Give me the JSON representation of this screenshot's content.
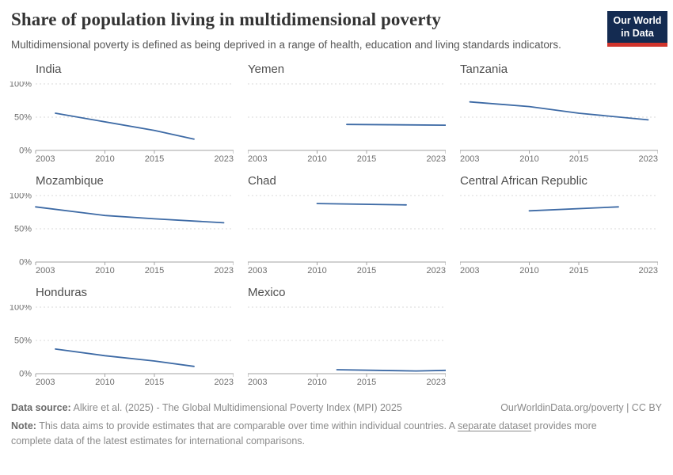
{
  "header": {
    "title": "Share of population living in multidimensional poverty",
    "subtitle": "Multidimensional poverty is defined as being deprived in a range of health, education and living standards indicators.",
    "logo": {
      "line1": "Our World",
      "line2": "in Data"
    }
  },
  "style": {
    "line_color": "#3d6aa5",
    "grid_color": "#d8d8d8",
    "axis_color": "#a3a3a3",
    "tick_label_color": "#6e6e6e",
    "logo_bg": "#142b51",
    "logo_accent": "#d0342c"
  },
  "chart_data": {
    "type": "line",
    "layout": "small-multiples",
    "title": "Share of population living in multidimensional poverty",
    "xlabel": "",
    "ylabel": "",
    "x_range": [
      2003,
      2023
    ],
    "y_range": [
      0,
      100
    ],
    "x_ticks": [
      "2003",
      "2010",
      "2015",
      "2023"
    ],
    "y_ticks": [
      "0%",
      "50%",
      "100%"
    ],
    "grid": true,
    "legend": "none",
    "series": [
      {
        "name": "India",
        "x": [
          2005,
          2015,
          2019
        ],
        "values": [
          56,
          30,
          17
        ]
      },
      {
        "name": "Yemen",
        "x": [
          2013,
          2023
        ],
        "values": [
          39,
          38
        ]
      },
      {
        "name": "Tanzania",
        "x": [
          2004,
          2010,
          2015,
          2022
        ],
        "values": [
          73,
          66,
          56,
          46
        ]
      },
      {
        "name": "Mozambique",
        "x": [
          2003,
          2010,
          2015,
          2022
        ],
        "values": [
          83,
          70,
          65,
          59
        ]
      },
      {
        "name": "Chad",
        "x": [
          2010,
          2019
        ],
        "values": [
          88,
          86
        ]
      },
      {
        "name": "Central African Republic",
        "x": [
          2010,
          2019
        ],
        "values": [
          77,
          83
        ]
      },
      {
        "name": "Honduras",
        "x": [
          2005,
          2010,
          2015,
          2019
        ],
        "values": [
          37,
          27,
          19,
          11
        ]
      },
      {
        "name": "Mexico",
        "x": [
          2012,
          2016,
          2020,
          2023
        ],
        "values": [
          6,
          5,
          4,
          5
        ]
      }
    ]
  },
  "footer": {
    "source_label": "Data source:",
    "source_text": "Alkire et al. (2025) - The Global Multidimensional Poverty Index (MPI) 2025",
    "url": "OurWorldinData.org/poverty",
    "separator": " | ",
    "license": "CC BY",
    "note_label": "Note:",
    "note_text_before": "This data aims to provide estimates that are comparable over time within individual countries. A ",
    "note_link": "separate dataset",
    "note_text_after": " provides more complete data of the latest estimates for international comparisons."
  }
}
